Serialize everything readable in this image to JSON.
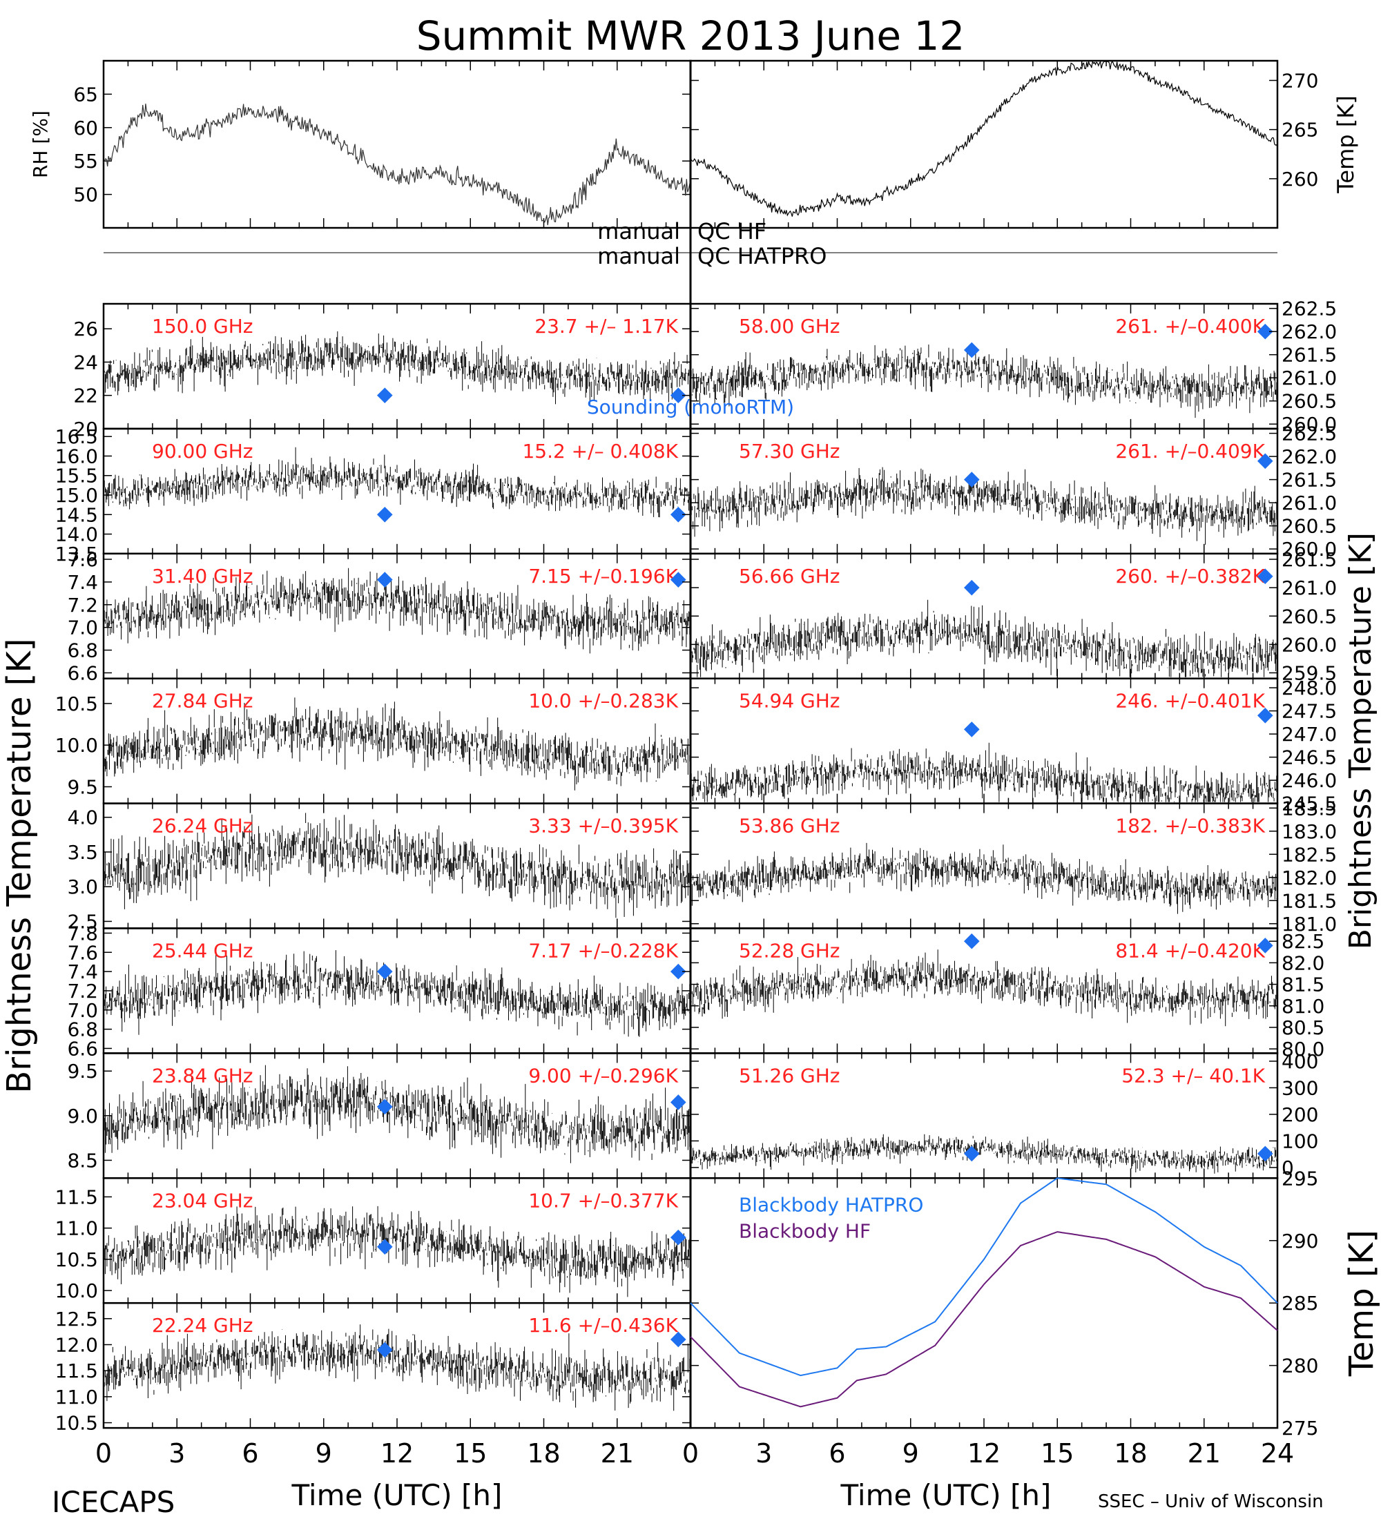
{
  "title": "Summit MWR 2013 June 12",
  "footer": {
    "left": "ICECAPS",
    "right": "SSEC – Univ of Wisconsin"
  },
  "xaxis": {
    "label": "Time (UTC) [h]",
    "ticks": [
      "0",
      "3",
      "6",
      "9",
      "12",
      "15",
      "18",
      "21",
      "24"
    ],
    "range": [
      0,
      24
    ]
  },
  "top_panels": {
    "rh": {
      "ylabel": "RH [%]",
      "ticks": [
        "50",
        "55",
        "60",
        "65"
      ],
      "ylim": [
        45,
        70
      ]
    },
    "temp": {
      "ylabel": "Temp [K]",
      "ticks": [
        "260",
        "265",
        "270"
      ],
      "ylim": [
        255,
        272
      ]
    }
  },
  "qc_rows": [
    {
      "label": "manual",
      "name": "QC HF"
    },
    {
      "label": "manual",
      "name": "QC HATPRO"
    }
  ],
  "left_ylabel": "Brightness Temperature [K]",
  "right_ylabel": "Brightness Temperature [K]",
  "bottom_right_ylabel": "Temp [K]",
  "sounding_label": "Sounding (monoRTM)",
  "blackbody": {
    "ticks": [
      "275",
      "280",
      "285",
      "290",
      "295"
    ],
    "ylim": [
      275,
      295
    ],
    "series": [
      {
        "name": "Blackbody HATPRO",
        "color": "#1e78f0"
      },
      {
        "name": "Blackbody HF",
        "color": "#6a1b7a"
      }
    ]
  },
  "colors": {
    "label_red": "#ff2020",
    "sounding_blue": "#1e6ef0",
    "data": "#000000"
  },
  "chart_data": [
    {
      "type": "scatter",
      "panel": "left",
      "freq": "150.0 GHz",
      "stats": "23.7 +/–  1.17K",
      "mean": 23.7,
      "sd": 1.17,
      "ylim": [
        20,
        27.5
      ],
      "ticks": [
        "20",
        "22",
        "24",
        "26"
      ],
      "sounding": [
        22.0,
        22.0
      ]
    },
    {
      "type": "scatter",
      "panel": "left",
      "freq": "90.00 GHz",
      "stats": "15.2 +/– 0.408K",
      "mean": 15.2,
      "sd": 0.408,
      "ylim": [
        13.5,
        16.7
      ],
      "ticks": [
        "13.5",
        "14.0",
        "14.5",
        "15.0",
        "15.5",
        "16.0",
        "16.5"
      ],
      "sounding": [
        14.5,
        14.5
      ]
    },
    {
      "type": "scatter",
      "panel": "left",
      "freq": "31.40 GHz",
      "stats": "7.15 +/–0.196K",
      "mean": 7.15,
      "sd": 0.196,
      "ylim": [
        6.55,
        7.65
      ],
      "ticks": [
        "6.6",
        "6.8",
        "7.0",
        "7.2",
        "7.4",
        "7.6"
      ],
      "sounding": [
        7.42,
        7.42
      ]
    },
    {
      "type": "scatter",
      "panel": "left",
      "freq": "27.84 GHz",
      "stats": "10.0 +/–0.283K",
      "mean": 10.0,
      "sd": 0.283,
      "ylim": [
        9.3,
        10.8
      ],
      "ticks": [
        "9.5",
        "10.0",
        "10.5"
      ],
      "sounding": null
    },
    {
      "type": "scatter",
      "panel": "left",
      "freq": "26.24 GHz",
      "stats": "3.33 +/–0.395K",
      "mean": 3.33,
      "sd": 0.395,
      "ylim": [
        2.4,
        4.2
      ],
      "ticks": [
        "2.5",
        "3.0",
        "3.5",
        "4.0"
      ],
      "sounding": null
    },
    {
      "type": "scatter",
      "panel": "left",
      "freq": "25.44 GHz",
      "stats": "7.17 +/–0.228K",
      "mean": 7.17,
      "sd": 0.228,
      "ylim": [
        6.55,
        7.85
      ],
      "ticks": [
        "6.6",
        "6.8",
        "7.0",
        "7.2",
        "7.4",
        "7.6",
        "7.8"
      ],
      "sounding": [
        7.4,
        7.4
      ]
    },
    {
      "type": "scatter",
      "panel": "left",
      "freq": "23.84 GHz",
      "stats": "9.00 +/–0.296K",
      "mean": 9.0,
      "sd": 0.296,
      "ylim": [
        8.3,
        9.7
      ],
      "ticks": [
        "8.5",
        "9.0",
        "9.5"
      ],
      "sounding": [
        9.1,
        9.15
      ]
    },
    {
      "type": "scatter",
      "panel": "left",
      "freq": "23.04 GHz",
      "stats": "10.7 +/–0.377K",
      "mean": 10.7,
      "sd": 0.377,
      "ylim": [
        9.8,
        11.8
      ],
      "ticks": [
        "10.0",
        "10.5",
        "11.0",
        "11.5"
      ],
      "sounding": [
        10.7,
        10.85
      ]
    },
    {
      "type": "scatter",
      "panel": "left",
      "freq": "22.24 GHz",
      "stats": "11.6 +/–0.436K",
      "mean": 11.6,
      "sd": 0.436,
      "ylim": [
        10.4,
        12.8
      ],
      "ticks": [
        "10.5",
        "11.0",
        "11.5",
        "12.0",
        "12.5"
      ],
      "sounding": [
        11.9,
        12.1
      ]
    },
    {
      "type": "scatter",
      "panel": "right",
      "freq": "58.00 GHz",
      "stats": "261. +/–0.400K",
      "mean": 261.0,
      "sd": 0.4,
      "ylim": [
        259.9,
        262.6
      ],
      "ticks": [
        "260.0",
        "260.5",
        "261.0",
        "261.5",
        "262.0",
        "262.5"
      ],
      "sounding": [
        261.6,
        262.0
      ]
    },
    {
      "type": "scatter",
      "panel": "right",
      "freq": "57.30 GHz",
      "stats": "261. +/–0.409K",
      "mean": 261.0,
      "sd": 0.409,
      "ylim": [
        259.9,
        262.6
      ],
      "ticks": [
        "260.0",
        "260.5",
        "261.0",
        "261.5",
        "262.0",
        "262.5"
      ],
      "sounding": [
        261.5,
        261.9
      ]
    },
    {
      "type": "scatter",
      "panel": "right",
      "freq": "56.66 GHz",
      "stats": "260. +/–0.382K",
      "mean": 260.0,
      "sd": 0.382,
      "ylim": [
        259.4,
        261.6
      ],
      "ticks": [
        "259.5",
        "260.0",
        "260.5",
        "261.0",
        "261.5"
      ],
      "sounding": [
        261.0,
        261.2
      ]
    },
    {
      "type": "scatter",
      "panel": "right",
      "freq": "54.94 GHz",
      "stats": "246. +/–0.401K",
      "mean": 246.0,
      "sd": 0.401,
      "ylim": [
        245.5,
        248.2
      ],
      "ticks": [
        "245.5",
        "246.0",
        "246.5",
        "247.0",
        "247.5",
        "248.0"
      ],
      "sounding": [
        247.1,
        247.4
      ]
    },
    {
      "type": "scatter",
      "panel": "right",
      "freq": "53.86 GHz",
      "stats": "182. +/–0.383K",
      "mean": 182.0,
      "sd": 0.383,
      "ylim": [
        180.9,
        183.6
      ],
      "ticks": [
        "181.0",
        "181.5",
        "182.0",
        "182.5",
        "183.0",
        "183.5"
      ],
      "sounding": null
    },
    {
      "type": "scatter",
      "panel": "right",
      "freq": "52.28 GHz",
      "stats": "81.4 +/–0.420K",
      "mean": 81.4,
      "sd": 0.42,
      "ylim": [
        79.9,
        82.8
      ],
      "ticks": [
        "80.0",
        "80.5",
        "81.0",
        "81.5",
        "82.0",
        "82.5"
      ],
      "sounding": [
        82.5,
        82.4
      ]
    },
    {
      "type": "scatter",
      "panel": "right",
      "freq": "51.26 GHz",
      "stats": "52.3 +/– 40.1K",
      "mean": 52.3,
      "sd": 40.1,
      "ylim": [
        -40,
        430
      ],
      "ticks": [
        "0",
        "100",
        "200",
        "300",
        "400"
      ],
      "sounding": [
        52.0,
        52.0
      ]
    },
    {
      "type": "line",
      "panel": "blackbody",
      "title": "",
      "x": [
        0,
        2,
        4.5,
        6,
        6.8,
        8,
        10,
        12,
        13.5,
        15,
        17,
        19,
        21,
        22.5,
        24
      ],
      "series": [
        {
          "name": "Blackbody HATPRO",
          "values": [
            285,
            281,
            279.2,
            279.8,
            281.3,
            281.5,
            283.5,
            288.5,
            293,
            295,
            294.5,
            292.3,
            289.5,
            288,
            285
          ]
        },
        {
          "name": "Blackbody HF",
          "values": [
            282.3,
            278.3,
            276.7,
            277.4,
            278.8,
            279.3,
            281.6,
            286.5,
            289.6,
            290.7,
            290.1,
            288.7,
            286.3,
            285.4,
            282.8
          ]
        }
      ]
    }
  ]
}
